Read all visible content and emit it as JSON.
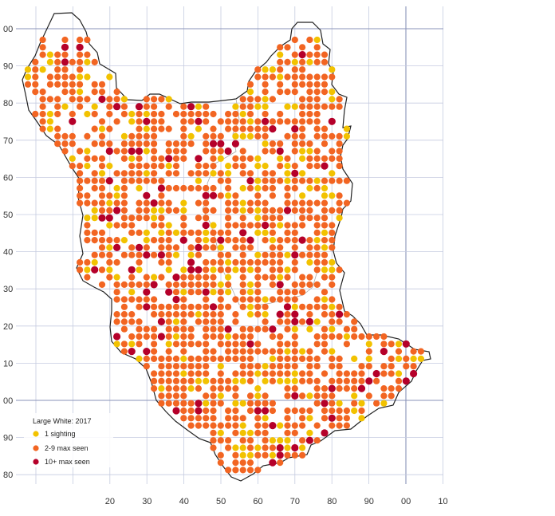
{
  "map": {
    "legend": {
      "title": "Large White:  2017",
      "items": [
        {
          "label": "1 sighting",
          "color": "#f2c200"
        },
        {
          "label": "2-9 max seen",
          "color": "#f26522"
        },
        {
          "label": "10+ max seen",
          "color": "#b5002a"
        }
      ]
    },
    "y_labels": [
      "00",
      "90",
      "80",
      "70",
      "60",
      "50",
      "40",
      "30",
      "20",
      "10",
      "00",
      "90",
      "80"
    ],
    "x_labels": [
      "20",
      "30",
      "40",
      "50",
      "60",
      "70",
      "80",
      "90",
      "00",
      "10"
    ],
    "colors": {
      "grid": "#c5cbe0",
      "grid_major": "#8a93b8",
      "boundary": "#222222",
      "inner_boundary": "#aaaaaa"
    }
  }
}
